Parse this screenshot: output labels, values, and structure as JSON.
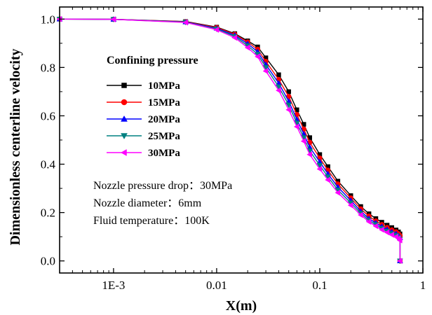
{
  "chart_data": {
    "type": "line",
    "xlabel": "X(m)",
    "ylabel": "Dimensionless centerline velocity",
    "xscale": "log",
    "xlim": [
      0.0003,
      1
    ],
    "ylim": [
      -0.05,
      1.05
    ],
    "xticks": [
      {
        "value": 0.001,
        "label": "1E-3"
      },
      {
        "value": 0.01,
        "label": "0.01"
      },
      {
        "value": 0.1,
        "label": "0.1"
      },
      {
        "value": 1,
        "label": "1"
      }
    ],
    "yticks": [
      {
        "value": 0.0,
        "label": "0.0"
      },
      {
        "value": 0.2,
        "label": "0.2"
      },
      {
        "value": 0.4,
        "label": "0.4"
      },
      {
        "value": 0.6,
        "label": "0.6"
      },
      {
        "value": 0.8,
        "label": "0.8"
      },
      {
        "value": 1.0,
        "label": "1.0"
      }
    ],
    "grid": false,
    "legend": {
      "title": "Confining pressure",
      "placement": "center-left"
    },
    "annotations": [
      "Nozzle pressure drop：30MPa",
      "Nozzle diameter：6mm",
      "Fluid temperature：100K"
    ],
    "series": [
      {
        "name": "10MPa",
        "color": "#000000",
        "marker": "square",
        "x": [
          0.0003,
          0.001,
          0.005,
          0.01,
          0.015,
          0.02,
          0.025,
          0.03,
          0.04,
          0.05,
          0.06,
          0.07,
          0.08,
          0.1,
          0.12,
          0.15,
          0.2,
          0.25,
          0.3,
          0.35,
          0.4,
          0.45,
          0.5,
          0.55,
          0.58,
          0.6,
          0.6
        ],
        "y": [
          1.0,
          0.999,
          0.99,
          0.967,
          0.94,
          0.91,
          0.885,
          0.84,
          0.77,
          0.7,
          0.625,
          0.565,
          0.51,
          0.44,
          0.39,
          0.33,
          0.27,
          0.225,
          0.195,
          0.175,
          0.16,
          0.148,
          0.138,
          0.128,
          0.12,
          0.112,
          0.0
        ]
      },
      {
        "name": "15MPa",
        "color": "#ff0000",
        "marker": "circle",
        "x": [
          0.0003,
          0.001,
          0.005,
          0.01,
          0.015,
          0.02,
          0.025,
          0.03,
          0.04,
          0.05,
          0.06,
          0.07,
          0.08,
          0.1,
          0.12,
          0.15,
          0.2,
          0.25,
          0.3,
          0.35,
          0.4,
          0.45,
          0.5,
          0.55,
          0.58,
          0.6,
          0.6
        ],
        "y": [
          1.0,
          0.999,
          0.989,
          0.965,
          0.937,
          0.905,
          0.875,
          0.825,
          0.75,
          0.68,
          0.605,
          0.545,
          0.49,
          0.425,
          0.375,
          0.318,
          0.26,
          0.215,
          0.185,
          0.165,
          0.15,
          0.138,
          0.128,
          0.12,
          0.112,
          0.104,
          0.0
        ]
      },
      {
        "name": "20MPa",
        "color": "#0000ff",
        "marker": "triangle-up",
        "x": [
          0.0003,
          0.001,
          0.005,
          0.01,
          0.015,
          0.02,
          0.025,
          0.03,
          0.04,
          0.05,
          0.06,
          0.07,
          0.08,
          0.1,
          0.12,
          0.15,
          0.2,
          0.25,
          0.3,
          0.35,
          0.4,
          0.45,
          0.5,
          0.55,
          0.58,
          0.6,
          0.6
        ],
        "y": [
          1.0,
          0.999,
          0.988,
          0.962,
          0.933,
          0.898,
          0.865,
          0.812,
          0.735,
          0.66,
          0.585,
          0.525,
          0.47,
          0.41,
          0.36,
          0.305,
          0.25,
          0.205,
          0.175,
          0.157,
          0.142,
          0.13,
          0.12,
          0.112,
          0.104,
          0.096,
          0.0
        ]
      },
      {
        "name": "25MPa",
        "color": "#008080",
        "marker": "triangle-down",
        "x": [
          0.0003,
          0.001,
          0.005,
          0.01,
          0.015,
          0.02,
          0.025,
          0.03,
          0.04,
          0.05,
          0.06,
          0.07,
          0.08,
          0.1,
          0.12,
          0.15,
          0.2,
          0.25,
          0.3,
          0.35,
          0.4,
          0.45,
          0.5,
          0.55,
          0.58,
          0.6,
          0.6
        ],
        "y": [
          1.0,
          0.999,
          0.987,
          0.959,
          0.928,
          0.89,
          0.855,
          0.8,
          0.72,
          0.645,
          0.57,
          0.51,
          0.455,
          0.395,
          0.348,
          0.293,
          0.24,
          0.197,
          0.168,
          0.15,
          0.135,
          0.123,
          0.113,
          0.105,
          0.098,
          0.09,
          0.0
        ]
      },
      {
        "name": "30MPa",
        "color": "#ff00ff",
        "marker": "triangle-left",
        "x": [
          0.0003,
          0.001,
          0.005,
          0.01,
          0.015,
          0.02,
          0.025,
          0.03,
          0.04,
          0.05,
          0.06,
          0.07,
          0.08,
          0.1,
          0.12,
          0.15,
          0.2,
          0.25,
          0.3,
          0.35,
          0.4,
          0.45,
          0.5,
          0.55,
          0.58,
          0.6,
          0.6
        ],
        "y": [
          1.0,
          0.999,
          0.986,
          0.956,
          0.923,
          0.882,
          0.845,
          0.785,
          0.705,
          0.625,
          0.555,
          0.495,
          0.44,
          0.38,
          0.335,
          0.282,
          0.23,
          0.19,
          0.162,
          0.144,
          0.129,
          0.118,
          0.108,
          0.1,
          0.093,
          0.085,
          0.0
        ]
      }
    ]
  }
}
